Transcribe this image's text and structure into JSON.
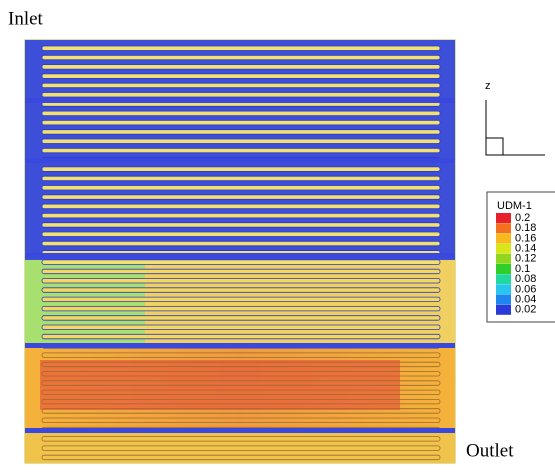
{
  "labels": {
    "inlet": "Inlet",
    "outlet": "Outlet",
    "axis": "z"
  },
  "legend": {
    "title": "UDM-1",
    "items": [
      {
        "label": "0.2",
        "color": "#e8202a"
      },
      {
        "label": "0.18",
        "color": "#f4701e"
      },
      {
        "label": "0.16",
        "color": "#f8b91c"
      },
      {
        "label": "0.14",
        "color": "#d8e61a"
      },
      {
        "label": "0.12",
        "color": "#8fd81e"
      },
      {
        "label": "0.1",
        "color": "#2fce2a"
      },
      {
        "label": "0.08",
        "color": "#22d8a0"
      },
      {
        "label": "0.06",
        "color": "#26c6ee"
      },
      {
        "label": "0.04",
        "color": "#1f86f0"
      },
      {
        "label": "0.02",
        "color": "#2a3ad8"
      }
    ]
  }
}
